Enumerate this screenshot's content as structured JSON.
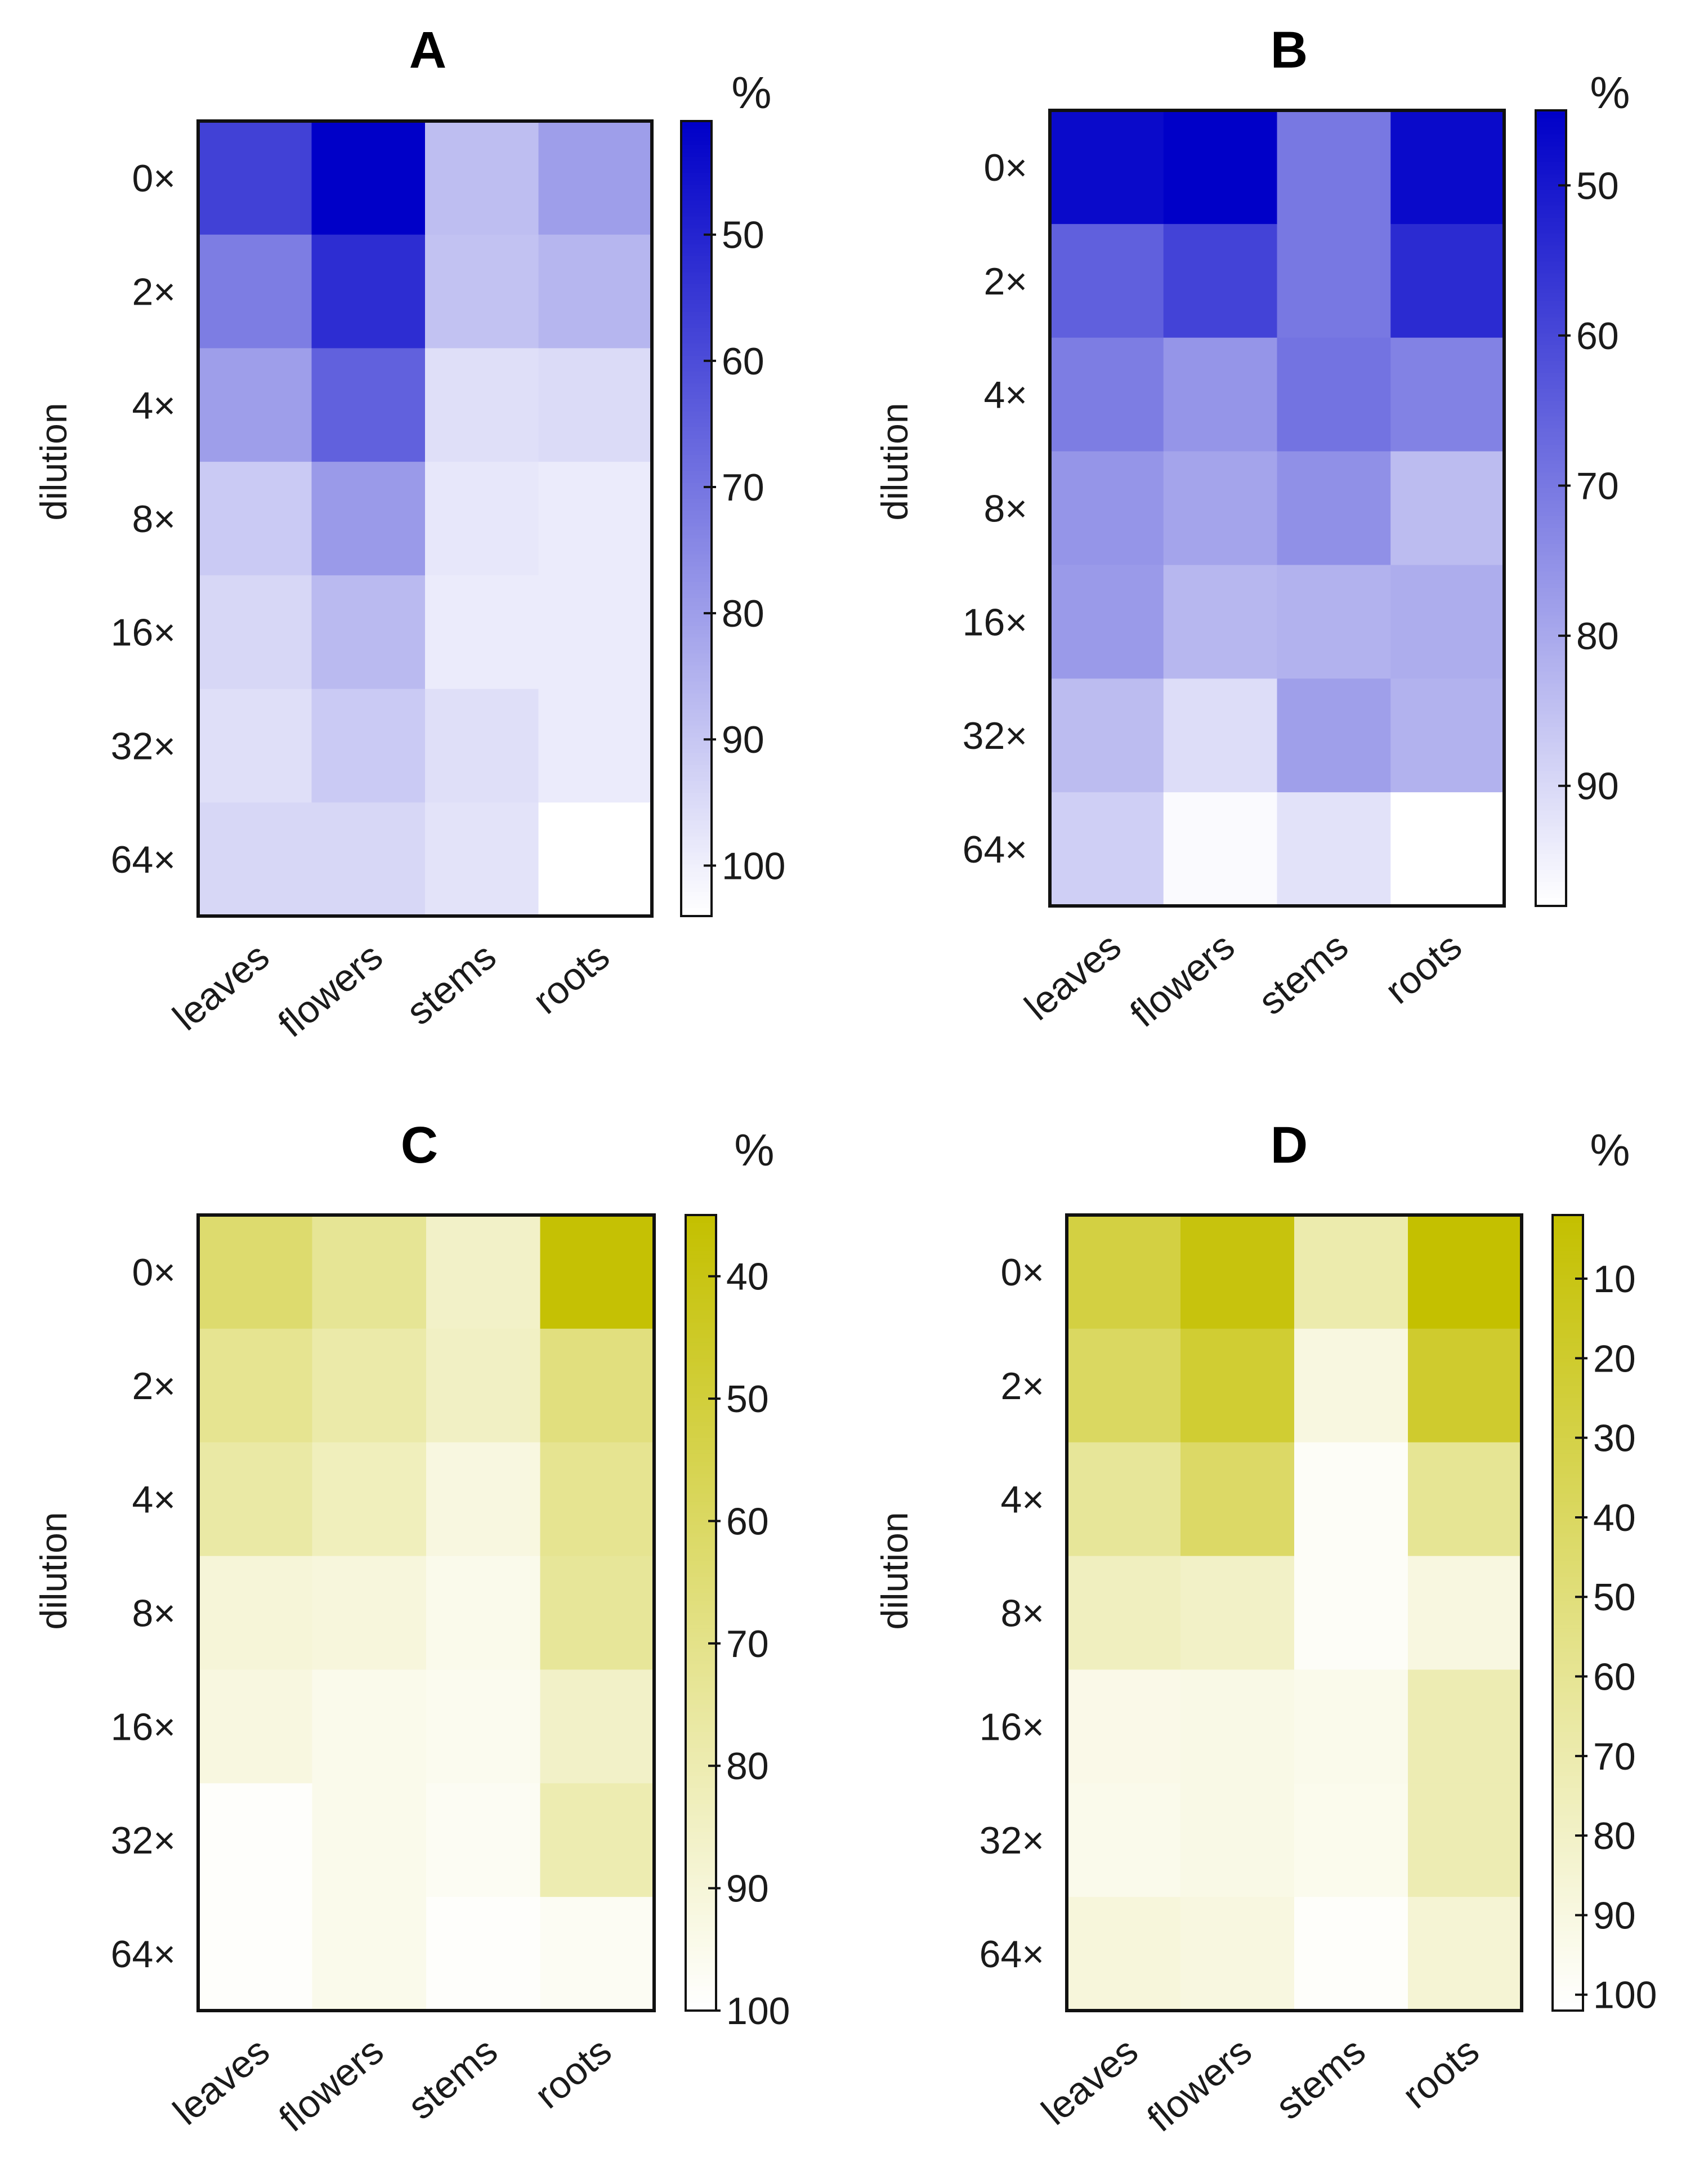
{
  "chart_data": [
    {
      "type": "heatmap",
      "title": "A",
      "xlabel": "",
      "ylabel": "dilution",
      "colorbar_label": "%",
      "x_categories": [
        "leaves",
        "flowers",
        "stems",
        "roots"
      ],
      "y_categories": [
        "0×",
        "2×",
        "4×",
        "8×",
        "16×",
        "32×",
        "64×"
      ],
      "values": [
        [
          57,
          41,
          88,
          80
        ],
        [
          72,
          52,
          89,
          86
        ],
        [
          80,
          65,
          96,
          95
        ],
        [
          91,
          79,
          98,
          99
        ],
        [
          94,
          87,
          99,
          99
        ],
        [
          96,
          91,
          96,
          99
        ],
        [
          94,
          94,
          97,
          104
        ]
      ],
      "colorbar": {
        "min": 41,
        "max": 104,
        "ticks": [
          50,
          60,
          70,
          80,
          90,
          100
        ],
        "color_low": "#0000c8",
        "color_high": "#ffffff"
      }
    },
    {
      "type": "heatmap",
      "title": "B",
      "xlabel": "",
      "ylabel": "dilution",
      "colorbar_label": "%",
      "x_categories": [
        "leaves",
        "flowers",
        "stems",
        "roots"
      ],
      "y_categories": [
        "0×",
        "2×",
        "4×",
        "8×",
        "16×",
        "32×",
        "64×"
      ],
      "values": [
        [
          47,
          45,
          70,
          47
        ],
        [
          65,
          59,
          70,
          54
        ],
        [
          71,
          76,
          69,
          72
        ],
        [
          76,
          79,
          75,
          84
        ],
        [
          77,
          83,
          82,
          81
        ],
        [
          84,
          91,
          78,
          82
        ],
        [
          88,
          97,
          92,
          98
        ]
      ],
      "colorbar": {
        "min": 45,
        "max": 98,
        "ticks": [
          50,
          60,
          70,
          80,
          90
        ],
        "color_low": "#0000c8",
        "color_high": "#ffffff"
      }
    },
    {
      "type": "heatmap",
      "title": "C",
      "xlabel": "",
      "ylabel": "dilution",
      "colorbar_label": "%",
      "x_categories": [
        "leaves",
        "flowers",
        "stems",
        "roots"
      ],
      "y_categories": [
        "0×",
        "2×",
        "4×",
        "8×",
        "16×",
        "32×",
        "64×"
      ],
      "values": [
        [
          63,
          73,
          86,
          36
        ],
        [
          72,
          78,
          85,
          67
        ],
        [
          77,
          83,
          92,
          72
        ],
        [
          90,
          91,
          95,
          74
        ],
        [
          92,
          95,
          96,
          86
        ],
        [
          99,
          95,
          97,
          80
        ],
        [
          99,
          95,
          99,
          97
        ]
      ],
      "colorbar": {
        "min": 35,
        "max": 100,
        "ticks": [
          40,
          50,
          60,
          70,
          80,
          90,
          100
        ],
        "color_low": "#c4c000",
        "color_high": "#ffffff"
      }
    },
    {
      "type": "heatmap",
      "title": "D",
      "xlabel": "",
      "ylabel": "dilution",
      "colorbar_label": "%",
      "x_categories": [
        "leaves",
        "flowers",
        "stems",
        "roots"
      ],
      "y_categories": [
        "0×",
        "2×",
        "4×",
        "8×",
        "16×",
        "32×",
        "64×"
      ],
      "values": [
        [
          28,
          7,
          70,
          2
        ],
        [
          40,
          22,
          90,
          20
        ],
        [
          62,
          42,
          99,
          60
        ],
        [
          77,
          80,
          99,
          90
        ],
        [
          93,
          92,
          94,
          72
        ],
        [
          94,
          92,
          95,
          72
        ],
        [
          88,
          90,
          100,
          85
        ]
      ],
      "colorbar": {
        "min": 2,
        "max": 102,
        "ticks": [
          10,
          20,
          30,
          40,
          50,
          60,
          70,
          80,
          90,
          100
        ],
        "color_low": "#c4c000",
        "color_high": "#ffffff"
      }
    }
  ]
}
